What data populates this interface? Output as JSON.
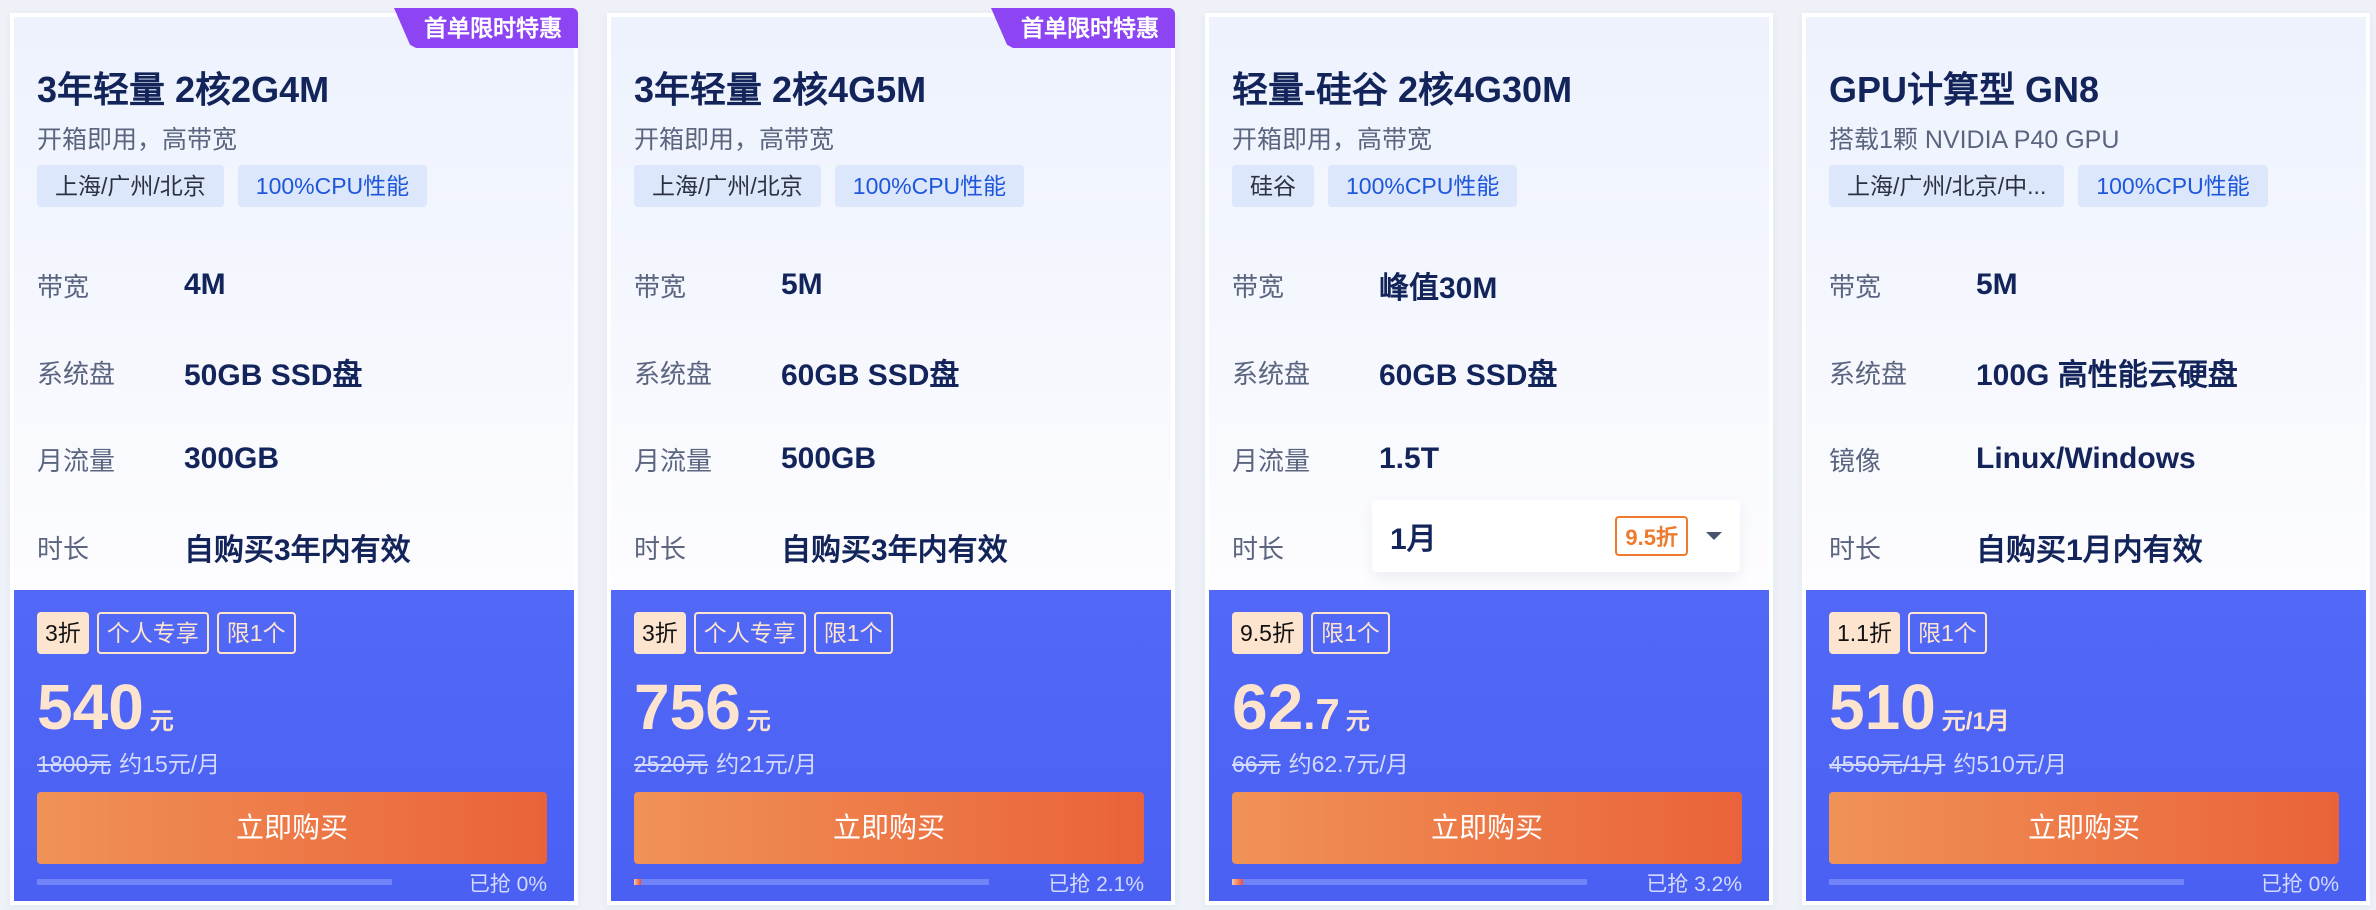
{
  "cards": [
    {
      "ribbon": "首单限时特惠",
      "title": "3年轻量 2核2G4M",
      "subtitle": "开箱即用，高带宽",
      "tags": [
        "上海/广州/北京",
        "100%CPU性能"
      ],
      "specs": [
        {
          "label": "带宽",
          "value": "4M"
        },
        {
          "label": "系统盘",
          "value": "50GB SSD盘"
        },
        {
          "label": "月流量",
          "value": "300GB"
        },
        {
          "label": "时长",
          "value": "自购买3年内有效"
        }
      ],
      "badges": [
        "3折",
        "个人专享",
        "限1个"
      ],
      "price_int": "540",
      "price_dec": "",
      "price_unit": "元",
      "original_price": "1800元",
      "monthly": "约15元/月",
      "buy_label": "立即购买",
      "sold_label": "已抢 0%",
      "sold_percent": 0
    },
    {
      "ribbon": "首单限时特惠",
      "title": "3年轻量 2核4G5M",
      "subtitle": "开箱即用，高带宽",
      "tags": [
        "上海/广州/北京",
        "100%CPU性能"
      ],
      "specs": [
        {
          "label": "带宽",
          "value": "5M"
        },
        {
          "label": "系统盘",
          "value": "60GB SSD盘"
        },
        {
          "label": "月流量",
          "value": "500GB"
        },
        {
          "label": "时长",
          "value": "自购买3年内有效"
        }
      ],
      "badges": [
        "3折",
        "个人专享",
        "限1个"
      ],
      "price_int": "756",
      "price_dec": "",
      "price_unit": "元",
      "original_price": "2520元",
      "monthly": "约21元/月",
      "buy_label": "立即购买",
      "sold_label": "已抢 2.1%",
      "sold_percent": 2.1
    },
    {
      "title": "轻量-硅谷 2核4G30M",
      "subtitle": "开箱即用，高带宽",
      "tags": [
        "硅谷",
        "100%CPU性能"
      ],
      "specs": [
        {
          "label": "带宽",
          "value": "峰值30M"
        },
        {
          "label": "系统盘",
          "value": "60GB SSD盘"
        },
        {
          "label": "月流量",
          "value": "1.5T"
        },
        {
          "label": "时长",
          "value": ""
        }
      ],
      "duration_select": {
        "value": "1月",
        "discount": "9.5折"
      },
      "badges": [
        "9.5折",
        "限1个"
      ],
      "price_int": "62",
      "price_dec": ".7",
      "price_unit": "元",
      "original_price": "66元",
      "monthly": "约62.7元/月",
      "buy_label": "立即购买",
      "sold_label": "已抢 3.2%",
      "sold_percent": 3.2
    },
    {
      "title": "GPU计算型 GN8",
      "subtitle": "搭载1颗 NVIDIA P40 GPU",
      "tags": [
        "上海/广州/北京/中...",
        "100%CPU性能"
      ],
      "specs": [
        {
          "label": "带宽",
          "value": "5M"
        },
        {
          "label": "系统盘",
          "value": "100G 高性能云硬盘"
        },
        {
          "label": "镜像",
          "value": "Linux/Windows"
        },
        {
          "label": "时长",
          "value": "自购买1月内有效"
        }
      ],
      "badges": [
        "1.1折",
        "限1个"
      ],
      "price_int": "510",
      "price_dec": "",
      "price_unit": "元/1月",
      "original_price": "4550元/1月",
      "monthly": "约510元/月",
      "buy_label": "立即购买",
      "sold_label": "已抢 0%",
      "sold_percent": 0
    }
  ],
  "colors": {
    "accent": "#4f64f5",
    "ribbon": "#8d44f2",
    "button": "#ec7548",
    "price": "#fde4cf"
  }
}
